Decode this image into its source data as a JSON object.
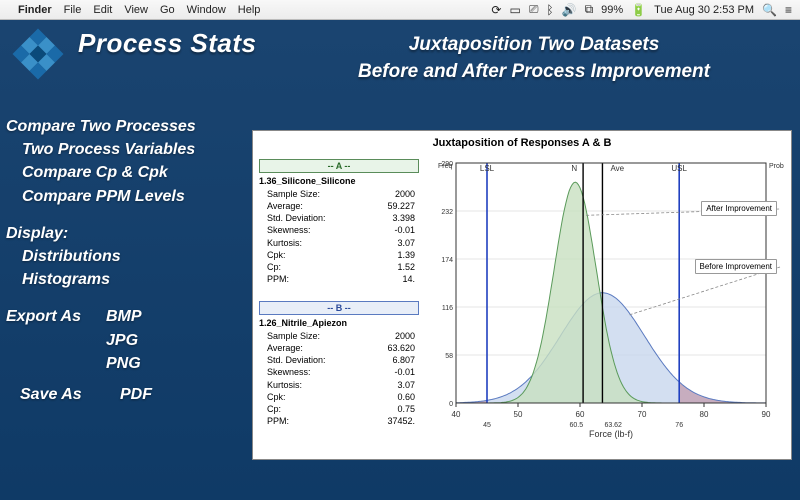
{
  "menubar": {
    "app": "Finder",
    "items": [
      "File",
      "Edit",
      "View",
      "Go",
      "Window",
      "Help"
    ],
    "battery": "99%",
    "datetime": "Tue Aug 30  2:53 PM"
  },
  "header": {
    "title": "Process Stats",
    "subtitle_l1": "Juxtaposition Two Datasets",
    "subtitle_l2": "Before and After Process Improvement"
  },
  "features": {
    "line1": "Compare Two Processes",
    "line2": "Two Process Variables",
    "line3": "Compare Cp & Cpk",
    "line4": "Compare PPM Levels",
    "display_hdr": "Display:",
    "display1": "Distributions",
    "display2": "Histograms",
    "export_hdr": "Export As",
    "export_fmts": [
      "BMP",
      "JPG",
      "PNG"
    ],
    "save_hdr": "Save As",
    "save_fmt": "PDF"
  },
  "chart": {
    "title": "Juxtaposition of Responses A & B",
    "xlabel": "Force (lb-f)",
    "y_left": "Freq",
    "y_right": "Prob",
    "xlim": [
      40,
      90
    ],
    "xticks": [
      40,
      50,
      60,
      70,
      80,
      90
    ],
    "yticks_freq": [
      0,
      58,
      116,
      174,
      232,
      290
    ],
    "lsl": 45,
    "usl": 76,
    "lsl_label": "LSL",
    "usl_label": "USL",
    "n_label": "N",
    "ave_label": "Ave",
    "marker1": 60.5,
    "marker2": 63.62,
    "series_a": {
      "hdr": "-- A --",
      "name": "1.36_Silicone_Silicone",
      "rows": [
        [
          "Sample Size:",
          "2000"
        ],
        [
          "Average:",
          "59.227"
        ],
        [
          "Std. Deviation:",
          "3.398"
        ],
        [
          "Skewness:",
          "-0.01"
        ],
        [
          "Kurtosis:",
          "3.07"
        ],
        [
          "Cpk:",
          "1.39"
        ],
        [
          "Cp:",
          "1.52"
        ],
        [
          "PPM:",
          "14."
        ]
      ],
      "mean": 59.227,
      "sd": 3.398,
      "fill": "#c8e0c0",
      "stroke": "#5a9a5a"
    },
    "series_b": {
      "hdr": "-- B --",
      "name": "1.26_Nitrile_Apiezon",
      "rows": [
        [
          "Sample Size:",
          "2000"
        ],
        [
          "Average:",
          "63.620"
        ],
        [
          "Std. Deviation:",
          "6.807"
        ],
        [
          "Skewness:",
          "-0.01"
        ],
        [
          "Kurtosis:",
          "3.07"
        ],
        [
          "Cpk:",
          "0.60"
        ],
        [
          "Cp:",
          "0.75"
        ],
        [
          "PPM:",
          "37452."
        ]
      ],
      "mean": 63.62,
      "sd": 6.807,
      "fill": "#c4d4ec",
      "stroke": "#5a7ac0"
    },
    "callout_after": "After Improvement",
    "callout_before": "Before Improvement",
    "spec_line_color": "#2040c0",
    "ave_line_color": "#000000",
    "grid_color": "#cccccc",
    "oob_fill": "#d03838"
  }
}
